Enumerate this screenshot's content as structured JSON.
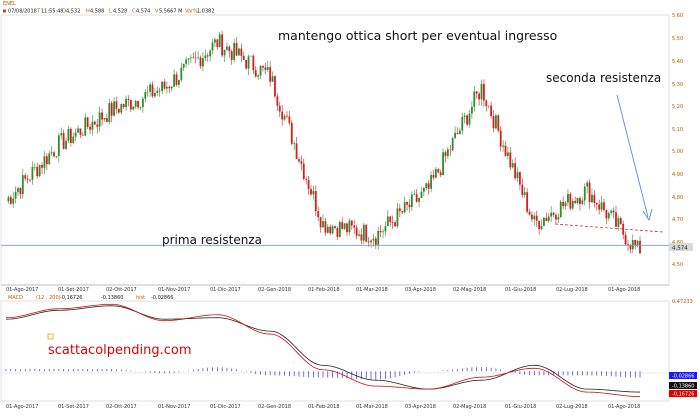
{
  "header": {
    "symbol": "ENEL",
    "date": "07/08/2018",
    "time": "11:55:48",
    "open": "4,532",
    "high": "4,588",
    "low": "4,528",
    "close": "4,574",
    "volume": "5,5667 M",
    "var_pct": "1,0382"
  },
  "annotations": {
    "title": "mantengo ottica short per eventual ingresso",
    "second_resistance": "seconda resistenza",
    "first_resistance": "prima resistenza",
    "watermark": "scattacolpending.com",
    "last_price_badge": "4,574"
  },
  "macd_header": {
    "label": "MACD",
    "params": "(12 , 200)",
    "macd_value": "-0,16726",
    "signal_value": "-0,13860",
    "hist_label": "hist",
    "hist_value": "-0,02866"
  },
  "x_ticks": [
    "01-Ago-2017",
    "01-Set-2017",
    "02-Ott-2017",
    "01-Nov-2017",
    "01-Dic-2017",
    "02-Gen-2018",
    "01-Feb-2018",
    "01-Mar-2018",
    "03-Apr-2018",
    "02-Mag-2018",
    "01-Giu-2018",
    "02-Lug-2018",
    "01-Ago-2018"
  ],
  "price_axis": {
    "ticks": [
      "5,60",
      "5,50",
      "5,40",
      "5,30",
      "5,20",
      "5,10",
      "5,00",
      "4,90",
      "4,80",
      "4,70",
      "4,60",
      "4,50"
    ]
  },
  "macd_axis": {
    "top_label": "0,47233",
    "badges": [
      {
        "text": "-0,02866",
        "color": "#1a1aff",
        "text_color": "#ffffff"
      },
      {
        "text": "-0,13860",
        "color": "#111111",
        "text_color": "#ffffff"
      },
      {
        "text": "-0,16726",
        "color": "#e00000",
        "text_color": "#ffffff"
      }
    ]
  },
  "colors": {
    "up": "#2e8b2e",
    "down": "#d22020",
    "macd_line": "#cc1111",
    "signal_line": "#222222",
    "histogram": "#1a1acc",
    "resistance_line": "#7a9cd8",
    "arrow": "#5b8bdc",
    "watermark": "#e00000"
  },
  "chart_data": [
    {
      "type": "candlestick",
      "title": "",
      "ylim": [
        4.43,
        5.62
      ],
      "horizontal_line": 4.605,
      "trend_line": {
        "from": [
          "01-Giu-2018",
          4.68
        ],
        "to": [
          "01-Ago-2018",
          4.645
        ]
      },
      "series": [
        {
          "name": "ENEL",
          "x": [
            "01-Ago-2017",
            "01-Set-2017",
            "02-Ott-2017",
            "01-Nov-2017",
            "01-Dic-2017",
            "02-Gen-2018",
            "01-Feb-2018",
            "01-Mar-2018",
            "03-Apr-2018",
            "02-Mag-2018",
            "01-Giu-2018",
            "02-Lug-2018",
            "01-Ago-2018"
          ],
          "close": [
            4.8,
            5.05,
            5.2,
            5.3,
            5.5,
            5.35,
            4.7,
            4.65,
            4.85,
            5.3,
            4.7,
            4.85,
            4.57
          ]
        }
      ]
    },
    {
      "type": "line",
      "title": "",
      "ylim": [
        -0.2,
        0.47233
      ],
      "x": [
        "01-Ago-2017",
        "01-Set-2017",
        "02-Ott-2017",
        "01-Nov-2017",
        "01-Dic-2017",
        "02-Gen-2018",
        "01-Feb-2018",
        "01-Mar-2018",
        "03-Apr-2018",
        "02-Mag-2018",
        "01-Giu-2018",
        "02-Lug-2018",
        "01-Ago-2018"
      ],
      "series": [
        {
          "values": [
            0.36,
            0.42,
            0.45,
            0.34,
            0.38,
            0.25,
            0.01,
            -0.1,
            -0.12,
            -0.04,
            0.02,
            -0.14,
            -0.17
          ]
        },
        {
          "values": [
            0.35,
            0.41,
            0.44,
            0.35,
            0.36,
            0.27,
            0.04,
            -0.06,
            -0.12,
            -0.06,
            0.04,
            -0.12,
            -0.14
          ]
        }
      ],
      "histogram": [
        0.01,
        0.01,
        0.01,
        -0.01,
        0.02,
        -0.02,
        -0.03,
        -0.04,
        0.0,
        0.02,
        -0.02,
        -0.02,
        -0.03
      ]
    }
  ]
}
